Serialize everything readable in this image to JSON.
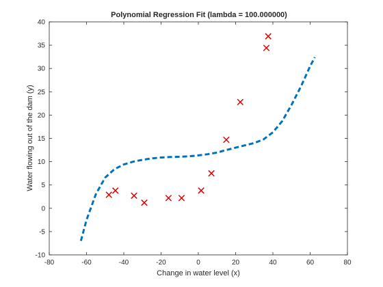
{
  "chart_data": {
    "type": "scatter",
    "title": "Polynomial Regression Fit (lambda = 100.000000)",
    "xlabel": "Change in water level (x)",
    "ylabel": "Water flowing out of the dam (y)",
    "xlim": [
      -80,
      80
    ],
    "ylim": [
      -10,
      40
    ],
    "xticks": [
      -80,
      -60,
      -40,
      -20,
      0,
      20,
      40,
      60,
      80
    ],
    "yticks": [
      -10,
      -5,
      0,
      5,
      10,
      15,
      20,
      25,
      30,
      35,
      40
    ],
    "grid": false,
    "legend": "none",
    "points": [
      {
        "x": -48,
        "y": 2.9
      },
      {
        "x": -44.5,
        "y": 3.8
      },
      {
        "x": -34.5,
        "y": 2.7
      },
      {
        "x": -29,
        "y": 1.2
      },
      {
        "x": -16,
        "y": 2.2
      },
      {
        "x": -9,
        "y": 2.2
      },
      {
        "x": 1.5,
        "y": 3.8
      },
      {
        "x": 7,
        "y": 7.5
      },
      {
        "x": 15,
        "y": 14.7
      },
      {
        "x": 22.5,
        "y": 22.8
      },
      {
        "x": 36.5,
        "y": 34.4
      },
      {
        "x": 37.5,
        "y": 36.9
      }
    ],
    "fit_curve": {
      "x": [
        -63,
        -60,
        -55,
        -50,
        -45,
        -40,
        -35,
        -30,
        -25,
        -20,
        -15,
        -10,
        -5,
        0,
        5,
        10,
        15,
        20,
        25,
        30,
        35,
        40,
        45,
        50,
        55,
        60,
        62.5
      ],
      "y": [
        -7,
        -2.5,
        3,
        6.6,
        8.4,
        9.4,
        10,
        10.4,
        10.7,
        10.9,
        11,
        11.05,
        11.15,
        11.35,
        11.6,
        11.95,
        12.5,
        13,
        13.5,
        14,
        14.8,
        16.3,
        18.7,
        22.2,
        26.1,
        30.5,
        32.4
      ]
    },
    "colors": {
      "fit": "#0072BD",
      "markers": "#E00000",
      "axes": "#262626"
    }
  }
}
